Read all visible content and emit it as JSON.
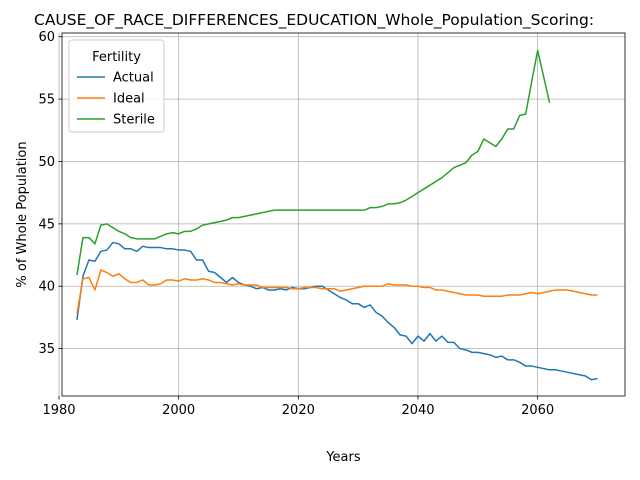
{
  "chart_data": {
    "type": "line",
    "title": "CAUSE_OF_RACE_DIFFERENCES_EDUCATION_Whole_Population_Scoring:",
    "xlabel": "Years",
    "ylabel": "% of Whole Population",
    "xlim": [
      1980.5,
      2074.6
    ],
    "ylim": [
      31.2,
      60.3
    ],
    "xticks": [
      1980,
      2000,
      2020,
      2040,
      2060
    ],
    "yticks": [
      35,
      40,
      45,
      50,
      55,
      60
    ],
    "grid": true,
    "legend": {
      "title": "Fertility",
      "placement": "top-left"
    },
    "series": [
      {
        "name": "Actual",
        "color": "#1f77b4",
        "x": [
          1983,
          1984,
          1985,
          1986,
          1987,
          1988,
          1989,
          1990,
          1991,
          1992,
          1993,
          1994,
          1995,
          1996,
          1997,
          1998,
          1999,
          2000,
          2001,
          2002,
          2003,
          2004,
          2005,
          2006,
          2007,
          2008,
          2009,
          2010,
          2011,
          2012,
          2013,
          2014,
          2015,
          2016,
          2017,
          2018,
          2019,
          2020,
          2021,
          2022,
          2023,
          2024,
          2025,
          2026,
          2027,
          2028,
          2029,
          2030,
          2031,
          2032,
          2033,
          2034,
          2035,
          2036,
          2037,
          2038,
          2039,
          2040,
          2041,
          2042,
          2043,
          2044,
          2045,
          2046,
          2047,
          2048,
          2049,
          2050,
          2051,
          2052,
          2053,
          2054,
          2055,
          2056,
          2057,
          2058,
          2059,
          2060,
          2061,
          2062,
          2063,
          2064,
          2065,
          2066,
          2067,
          2068,
          2069,
          2070
        ],
        "y": [
          37.3,
          40.8,
          42.1,
          42.0,
          42.8,
          42.9,
          43.5,
          43.4,
          43.0,
          43.0,
          42.8,
          43.2,
          43.1,
          43.1,
          43.1,
          43.0,
          43.0,
          42.9,
          42.9,
          42.8,
          42.1,
          42.1,
          41.2,
          41.1,
          40.7,
          40.3,
          40.7,
          40.3,
          40.1,
          40.0,
          39.8,
          39.9,
          39.7,
          39.7,
          39.8,
          39.7,
          39.9,
          39.8,
          39.8,
          39.9,
          40.0,
          40.0,
          39.7,
          39.4,
          39.1,
          38.9,
          38.6,
          38.6,
          38.3,
          38.5,
          37.9,
          37.6,
          37.1,
          36.7,
          36.1,
          36.0,
          35.4,
          36.0,
          35.6,
          36.2,
          35.6,
          36.0,
          35.5,
          35.5,
          35.0,
          34.9,
          34.7,
          34.7,
          34.6,
          34.5,
          34.3,
          34.4,
          34.1,
          34.1,
          33.9,
          33.6,
          33.6,
          33.5,
          33.4,
          33.3,
          33.3,
          33.2,
          33.1,
          33.0,
          32.9,
          32.8,
          32.5,
          32.6
        ]
      },
      {
        "name": "Ideal",
        "color": "#ff7f0e",
        "x": [
          1983,
          1984,
          1985,
          1986,
          1987,
          1988,
          1989,
          1990,
          1991,
          1992,
          1993,
          1994,
          1995,
          1996,
          1997,
          1998,
          1999,
          2000,
          2001,
          2002,
          2003,
          2004,
          2005,
          2006,
          2007,
          2008,
          2009,
          2010,
          2011,
          2012,
          2013,
          2014,
          2015,
          2016,
          2017,
          2018,
          2019,
          2020,
          2021,
          2022,
          2023,
          2024,
          2025,
          2026,
          2027,
          2028,
          2029,
          2030,
          2031,
          2032,
          2033,
          2034,
          2035,
          2036,
          2037,
          2038,
          2039,
          2040,
          2041,
          2042,
          2043,
          2044,
          2045,
          2046,
          2047,
          2048,
          2049,
          2050,
          2051,
          2052,
          2053,
          2054,
          2055,
          2056,
          2057,
          2058,
          2059,
          2060,
          2061,
          2062,
          2063,
          2064,
          2065,
          2066,
          2067,
          2068,
          2069,
          2070
        ],
        "y": [
          37.8,
          40.6,
          40.7,
          39.7,
          41.3,
          41.1,
          40.8,
          41.0,
          40.6,
          40.3,
          40.3,
          40.5,
          40.1,
          40.1,
          40.2,
          40.5,
          40.5,
          40.4,
          40.6,
          40.5,
          40.5,
          40.6,
          40.5,
          40.3,
          40.3,
          40.2,
          40.1,
          40.2,
          40.1,
          40.1,
          40.1,
          39.9,
          39.9,
          39.9,
          39.9,
          39.9,
          39.8,
          39.8,
          39.9,
          39.9,
          39.9,
          39.8,
          39.8,
          39.8,
          39.6,
          39.7,
          39.8,
          39.9,
          40.0,
          40.0,
          40.0,
          40.0,
          40.2,
          40.1,
          40.1,
          40.1,
          40.0,
          40.0,
          39.9,
          39.9,
          39.7,
          39.7,
          39.6,
          39.5,
          39.4,
          39.3,
          39.3,
          39.3,
          39.2,
          39.2,
          39.2,
          39.2,
          39.3,
          39.3,
          39.3,
          39.4,
          39.5,
          39.4,
          39.5,
          39.6,
          39.7,
          39.7,
          39.7,
          39.6,
          39.5,
          39.4,
          39.3,
          39.3
        ]
      },
      {
        "name": "Sterile",
        "color": "#2ca02c",
        "x": [
          1983,
          1984,
          1985,
          1986,
          1987,
          1988,
          1989,
          1990,
          1991,
          1992,
          1993,
          1994,
          1995,
          1996,
          1997,
          1998,
          1999,
          2000,
          2001,
          2002,
          2003,
          2004,
          2005,
          2006,
          2007,
          2008,
          2009,
          2010,
          2011,
          2012,
          2013,
          2014,
          2015,
          2016,
          2017,
          2018,
          2019,
          2020,
          2021,
          2022,
          2023,
          2024,
          2025,
          2026,
          2027,
          2028,
          2029,
          2030,
          2031,
          2032,
          2033,
          2034,
          2035,
          2036,
          2037,
          2038,
          2039,
          2040,
          2041,
          2042,
          2043,
          2044,
          2045,
          2046,
          2047,
          2048,
          2049,
          2050,
          2051,
          2052,
          2053,
          2054,
          2055,
          2056,
          2057,
          2058,
          2059,
          2060,
          2061,
          2062
        ],
        "y": [
          40.9,
          43.9,
          43.9,
          43.4,
          44.9,
          45.0,
          44.7,
          44.4,
          44.2,
          43.9,
          43.8,
          43.8,
          43.8,
          43.8,
          44.0,
          44.2,
          44.3,
          44.2,
          44.4,
          44.4,
          44.6,
          44.9,
          45.0,
          45.1,
          45.2,
          45.3,
          45.5,
          45.5,
          45.6,
          45.7,
          45.8,
          45.9,
          46.0,
          46.1,
          46.1,
          46.1,
          46.1,
          46.1,
          46.1,
          46.1,
          46.1,
          46.1,
          46.1,
          46.1,
          46.1,
          46.1,
          46.1,
          46.1,
          46.1,
          46.3,
          46.3,
          46.4,
          46.6,
          46.6,
          46.7,
          46.9,
          47.2,
          47.5,
          47.8,
          48.1,
          48.4,
          48.7,
          49.1,
          49.5,
          49.7,
          49.9,
          50.5,
          50.8,
          51.8,
          51.5,
          51.2,
          51.8,
          52.6,
          52.6,
          53.7,
          53.8,
          56.4,
          58.9,
          56.8,
          54.7
        ]
      }
    ]
  }
}
